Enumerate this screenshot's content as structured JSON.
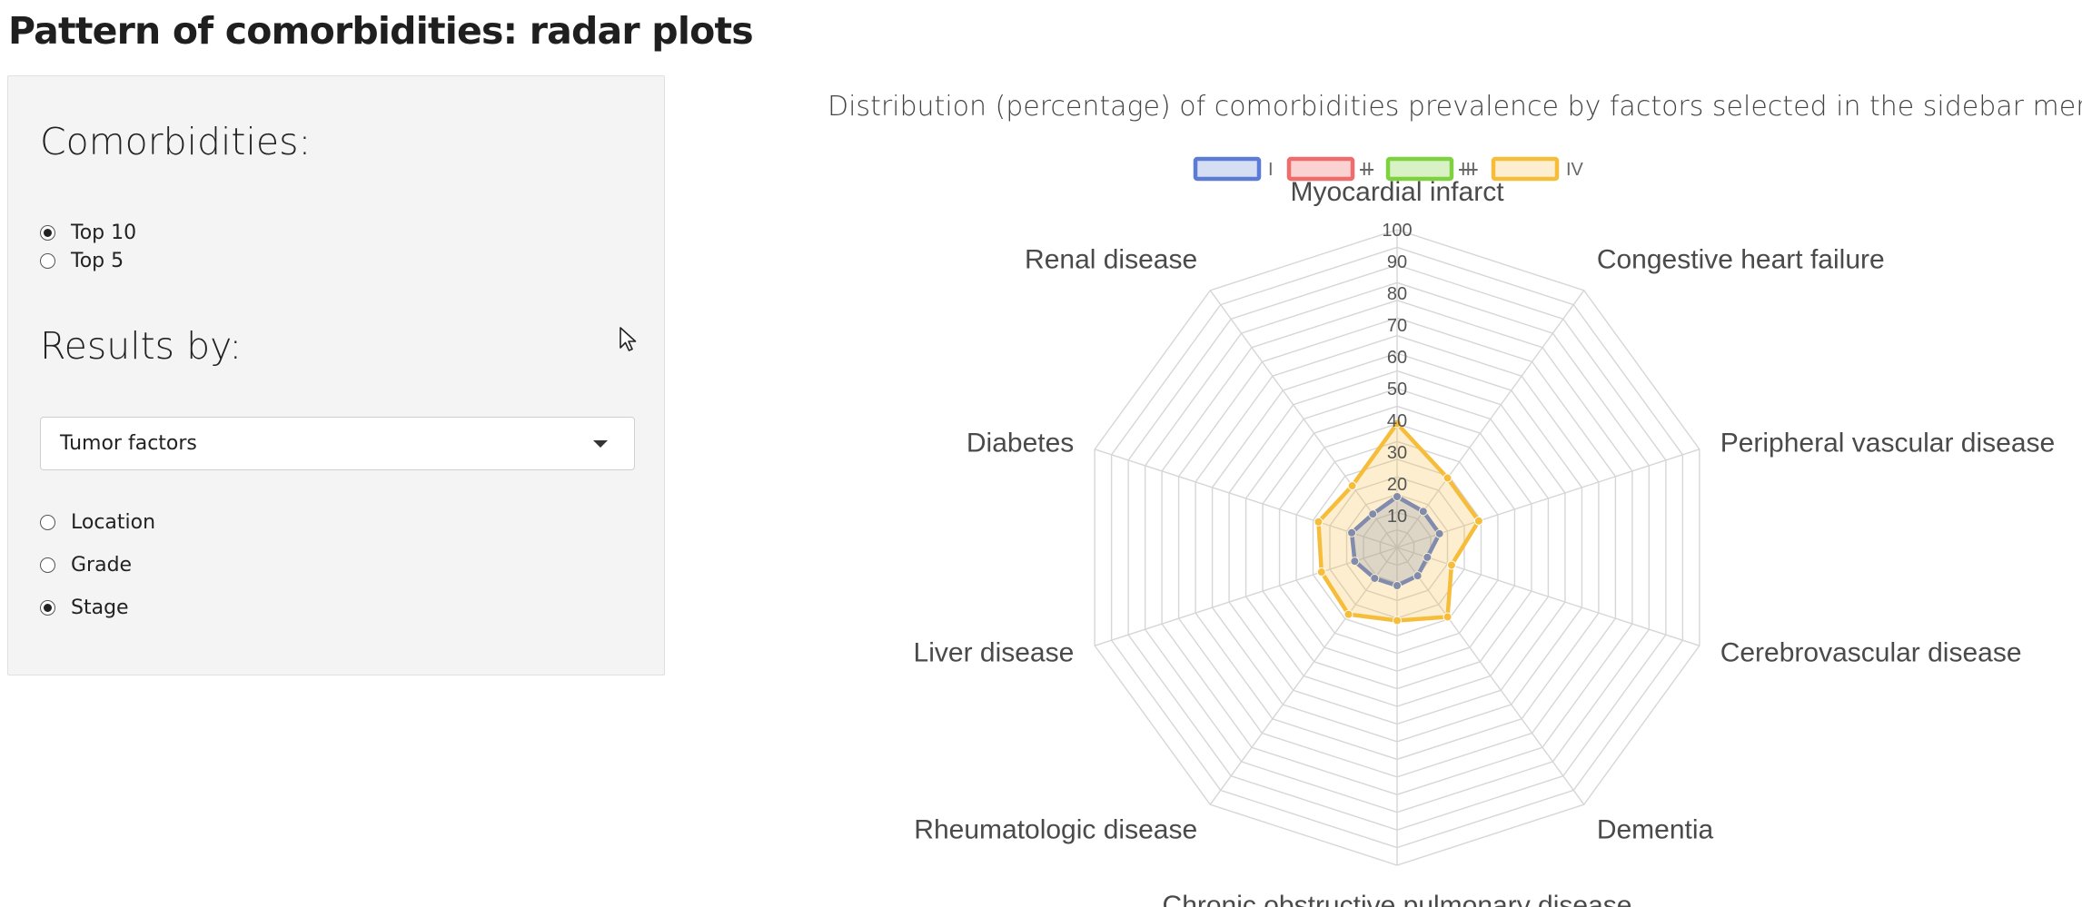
{
  "page": {
    "title": "Pattern of comorbidities: radar plots"
  },
  "sidebar": {
    "comorbidities": {
      "label": "Comorbidities:",
      "options": [
        {
          "label": "Top 10",
          "checked": true
        },
        {
          "label": "Top 5",
          "checked": false
        }
      ]
    },
    "results_by": {
      "label": "Results by:",
      "select_value": "Tumor factors",
      "options": [
        {
          "label": "Location",
          "checked": false
        },
        {
          "label": "Grade",
          "checked": false
        },
        {
          "label": "Stage",
          "checked": true
        }
      ]
    }
  },
  "chart": {
    "subtitle": "Distribution (percentage) of comorbidities prevalence by factors selected in the sidebar menu"
  },
  "chart_data": {
    "type": "radar",
    "axes": [
      "Myocardial infarct",
      "Congestive heart failure",
      "Peripheral vascular disease",
      "Cerebrovascular disease",
      "Dementia",
      "Chronic obstructive pulmonary disease",
      "Rheumatologic disease",
      "Liver disease",
      "Diabetes",
      "Renal disease"
    ],
    "r_range": [
      0,
      100
    ],
    "r_ticks": [
      "10",
      "20",
      "30",
      "40",
      "50",
      "60",
      "70",
      "80",
      "90",
      "100"
    ],
    "legend_position": "top",
    "grid": true,
    "series": [
      {
        "name": "I",
        "color": "#5b7bd5",
        "fill": "rgba(91,123,213,0.25)",
        "hidden": false,
        "values": [
          16,
          14,
          14,
          10,
          11,
          12,
          12,
          14,
          15,
          13
        ]
      },
      {
        "name": "II",
        "color": "#f06b6b",
        "fill": "rgba(240,107,107,0.3)",
        "hidden": true,
        "values": []
      },
      {
        "name": "III",
        "color": "#7ed13f",
        "fill": "rgba(126,209,63,0.3)",
        "hidden": true,
        "values": []
      },
      {
        "name": "IV",
        "color": "#f5bd3a",
        "fill": "rgba(245,189,58,0.25)",
        "hidden": false,
        "values": [
          39,
          27,
          27,
          18,
          27,
          23,
          26,
          25,
          26,
          24
        ]
      }
    ]
  }
}
